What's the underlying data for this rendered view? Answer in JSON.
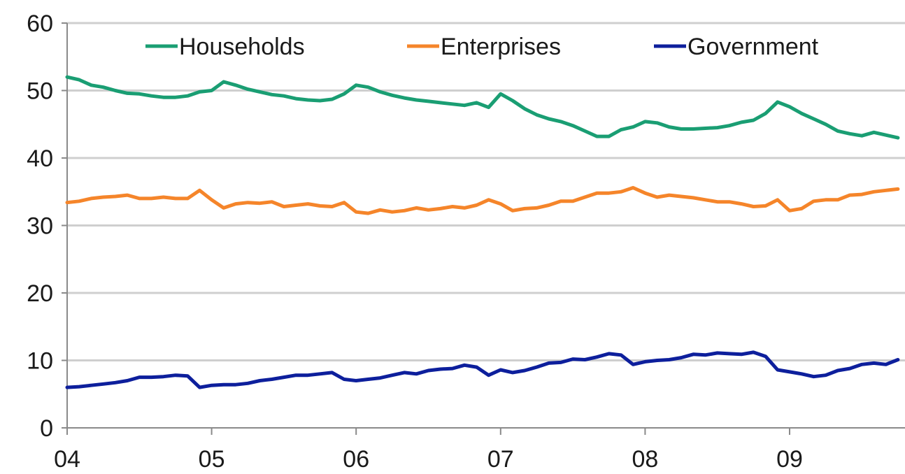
{
  "chart_data": {
    "type": "line",
    "title": "",
    "xlabel": "",
    "ylabel": "",
    "ylim": [
      0,
      60
    ],
    "yticks": [
      0,
      10,
      20,
      30,
      40,
      50,
      60
    ],
    "x_tick_labels": [
      "04",
      "05",
      "06",
      "07",
      "08",
      "09"
    ],
    "x_range": [
      0,
      70
    ],
    "grid": "horizontal",
    "legend_position": "top",
    "series": [
      {
        "name": "Households",
        "color": "#1a9e73",
        "points": [
          [
            0,
            52.0
          ],
          [
            1,
            51.6
          ],
          [
            2,
            50.8
          ],
          [
            3,
            50.5
          ],
          [
            4,
            50.0
          ],
          [
            5,
            49.6
          ],
          [
            6,
            49.5
          ],
          [
            7,
            49.2
          ],
          [
            8,
            49.0
          ],
          [
            9,
            49.0
          ],
          [
            10,
            49.2
          ],
          [
            11,
            49.8
          ],
          [
            12,
            50.0
          ],
          [
            13,
            51.3
          ],
          [
            14,
            50.8
          ],
          [
            15,
            50.2
          ],
          [
            16,
            49.8
          ],
          [
            17,
            49.4
          ],
          [
            18,
            49.2
          ],
          [
            19,
            48.8
          ],
          [
            20,
            48.6
          ],
          [
            21,
            48.5
          ],
          [
            22,
            48.7
          ],
          [
            23,
            49.5
          ],
          [
            24,
            50.8
          ],
          [
            25,
            50.5
          ],
          [
            26,
            49.8
          ],
          [
            27,
            49.3
          ],
          [
            28,
            48.9
          ],
          [
            29,
            48.6
          ],
          [
            30,
            48.4
          ],
          [
            31,
            48.2
          ],
          [
            32,
            48.0
          ],
          [
            33,
            47.8
          ],
          [
            34,
            48.2
          ],
          [
            35,
            47.5
          ],
          [
            36,
            49.5
          ],
          [
            37,
            48.5
          ],
          [
            38,
            47.3
          ],
          [
            39,
            46.4
          ],
          [
            40,
            45.8
          ],
          [
            41,
            45.4
          ],
          [
            42,
            44.8
          ],
          [
            43,
            44.0
          ],
          [
            44,
            43.2
          ],
          [
            45,
            43.2
          ],
          [
            46,
            44.2
          ],
          [
            47,
            44.6
          ],
          [
            48,
            45.4
          ],
          [
            49,
            45.2
          ],
          [
            50,
            44.6
          ],
          [
            51,
            44.3
          ],
          [
            52,
            44.3
          ],
          [
            53,
            44.4
          ],
          [
            54,
            44.5
          ],
          [
            55,
            44.8
          ],
          [
            56,
            45.3
          ],
          [
            57,
            45.6
          ],
          [
            58,
            46.6
          ],
          [
            59,
            48.3
          ],
          [
            60,
            47.6
          ],
          [
            61,
            46.6
          ],
          [
            62,
            45.8
          ],
          [
            63,
            45.0
          ],
          [
            64,
            44.0
          ],
          [
            65,
            43.6
          ],
          [
            66,
            43.3
          ],
          [
            67,
            43.8
          ],
          [
            68,
            43.4
          ],
          [
            69,
            43.0
          ]
        ]
      },
      {
        "name": "Enterprises",
        "color": "#f5852a",
        "points": [
          [
            0,
            33.4
          ],
          [
            1,
            33.6
          ],
          [
            2,
            34.0
          ],
          [
            3,
            34.2
          ],
          [
            4,
            34.3
          ],
          [
            5,
            34.5
          ],
          [
            6,
            34.0
          ],
          [
            7,
            34.0
          ],
          [
            8,
            34.2
          ],
          [
            9,
            34.0
          ],
          [
            10,
            34.0
          ],
          [
            11,
            35.2
          ],
          [
            12,
            33.8
          ],
          [
            13,
            32.6
          ],
          [
            14,
            33.2
          ],
          [
            15,
            33.4
          ],
          [
            16,
            33.3
          ],
          [
            17,
            33.5
          ],
          [
            18,
            32.8
          ],
          [
            19,
            33.0
          ],
          [
            20,
            33.2
          ],
          [
            21,
            32.9
          ],
          [
            22,
            32.8
          ],
          [
            23,
            33.4
          ],
          [
            24,
            32.0
          ],
          [
            25,
            31.8
          ],
          [
            26,
            32.3
          ],
          [
            27,
            32.0
          ],
          [
            28,
            32.2
          ],
          [
            29,
            32.6
          ],
          [
            30,
            32.3
          ],
          [
            31,
            32.5
          ],
          [
            32,
            32.8
          ],
          [
            33,
            32.6
          ],
          [
            34,
            33.0
          ],
          [
            35,
            33.8
          ],
          [
            36,
            33.2
          ],
          [
            37,
            32.2
          ],
          [
            38,
            32.5
          ],
          [
            39,
            32.6
          ],
          [
            40,
            33.0
          ],
          [
            41,
            33.6
          ],
          [
            42,
            33.6
          ],
          [
            43,
            34.2
          ],
          [
            44,
            34.8
          ],
          [
            45,
            34.8
          ],
          [
            46,
            35.0
          ],
          [
            47,
            35.6
          ],
          [
            48,
            34.8
          ],
          [
            49,
            34.2
          ],
          [
            50,
            34.5
          ],
          [
            51,
            34.3
          ],
          [
            52,
            34.1
          ],
          [
            53,
            33.8
          ],
          [
            54,
            33.5
          ],
          [
            55,
            33.5
          ],
          [
            56,
            33.2
          ],
          [
            57,
            32.8
          ],
          [
            58,
            32.9
          ],
          [
            59,
            33.8
          ],
          [
            60,
            32.2
          ],
          [
            61,
            32.5
          ],
          [
            62,
            33.6
          ],
          [
            63,
            33.8
          ],
          [
            64,
            33.8
          ],
          [
            65,
            34.5
          ],
          [
            66,
            34.6
          ],
          [
            67,
            35.0
          ],
          [
            68,
            35.2
          ],
          [
            69,
            35.4
          ]
        ]
      },
      {
        "name": "Government",
        "color": "#0d1f9c",
        "points": [
          [
            0,
            6.0
          ],
          [
            1,
            6.1
          ],
          [
            2,
            6.3
          ],
          [
            3,
            6.5
          ],
          [
            4,
            6.7
          ],
          [
            5,
            7.0
          ],
          [
            6,
            7.5
          ],
          [
            7,
            7.5
          ],
          [
            8,
            7.6
          ],
          [
            9,
            7.8
          ],
          [
            10,
            7.7
          ],
          [
            11,
            6.0
          ],
          [
            12,
            6.3
          ],
          [
            13,
            6.4
          ],
          [
            14,
            6.4
          ],
          [
            15,
            6.6
          ],
          [
            16,
            7.0
          ],
          [
            17,
            7.2
          ],
          [
            18,
            7.5
          ],
          [
            19,
            7.8
          ],
          [
            20,
            7.8
          ],
          [
            21,
            8.0
          ],
          [
            22,
            8.2
          ],
          [
            23,
            7.2
          ],
          [
            24,
            7.0
          ],
          [
            25,
            7.2
          ],
          [
            26,
            7.4
          ],
          [
            27,
            7.8
          ],
          [
            28,
            8.2
          ],
          [
            29,
            8.0
          ],
          [
            30,
            8.5
          ],
          [
            31,
            8.7
          ],
          [
            32,
            8.8
          ],
          [
            33,
            9.3
          ],
          [
            34,
            9.0
          ],
          [
            35,
            7.8
          ],
          [
            36,
            8.6
          ],
          [
            37,
            8.2
          ],
          [
            38,
            8.5
          ],
          [
            39,
            9.0
          ],
          [
            40,
            9.6
          ],
          [
            41,
            9.7
          ],
          [
            42,
            10.2
          ],
          [
            43,
            10.1
          ],
          [
            44,
            10.5
          ],
          [
            45,
            11.0
          ],
          [
            46,
            10.8
          ],
          [
            47,
            9.4
          ],
          [
            48,
            9.8
          ],
          [
            49,
            10.0
          ],
          [
            50,
            10.1
          ],
          [
            51,
            10.4
          ],
          [
            52,
            10.9
          ],
          [
            53,
            10.8
          ],
          [
            54,
            11.1
          ],
          [
            55,
            11.0
          ],
          [
            56,
            10.9
          ],
          [
            57,
            11.2
          ],
          [
            58,
            10.6
          ],
          [
            59,
            8.6
          ],
          [
            60,
            8.3
          ],
          [
            61,
            8.0
          ],
          [
            62,
            7.6
          ],
          [
            63,
            7.8
          ],
          [
            64,
            8.5
          ],
          [
            65,
            8.8
          ],
          [
            66,
            9.4
          ],
          [
            67,
            9.6
          ],
          [
            68,
            9.4
          ],
          [
            69,
            10.1
          ]
        ]
      }
    ]
  }
}
